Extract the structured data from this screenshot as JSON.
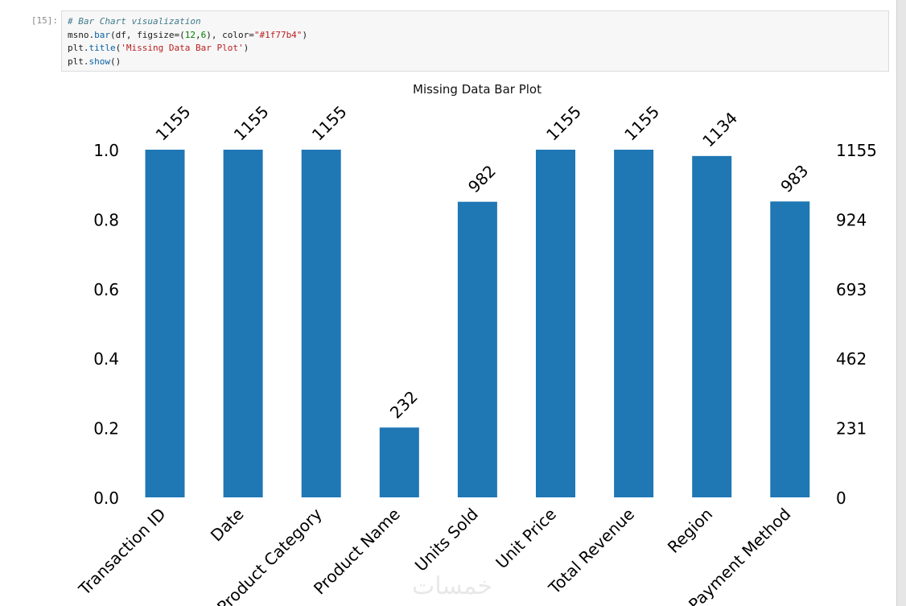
{
  "cell": {
    "prompt": "[15]:",
    "code_lines": [
      [
        {
          "t": "# Bar Chart visualization",
          "c": "cm"
        }
      ],
      [
        {
          "t": "msno.",
          "c": ""
        },
        {
          "t": "bar",
          "c": "fn"
        },
        {
          "t": "(df, figsize=(",
          "c": ""
        },
        {
          "t": "12",
          "c": "nu"
        },
        {
          "t": ",",
          "c": ""
        },
        {
          "t": "6",
          "c": "nu"
        },
        {
          "t": "), color=",
          "c": ""
        },
        {
          "t": "\"#1f77b4\"",
          "c": "st"
        },
        {
          "t": ")",
          "c": ""
        }
      ],
      [
        {
          "t": "plt.",
          "c": ""
        },
        {
          "t": "title",
          "c": "fn"
        },
        {
          "t": "(",
          "c": ""
        },
        {
          "t": "'Missing Data Bar Plot'",
          "c": "st"
        },
        {
          "t": ")",
          "c": ""
        }
      ],
      [
        {
          "t": "plt.",
          "c": ""
        },
        {
          "t": "show",
          "c": "fn"
        },
        {
          "t": "()",
          "c": ""
        }
      ]
    ]
  },
  "chart_data": {
    "type": "bar",
    "title": "Missing Data Bar Plot",
    "categories": [
      "Transaction ID",
      "Date",
      "Product Category",
      "Product Name",
      "Units Sold",
      "Unit Price",
      "Total Revenue",
      "Region",
      "Payment Method"
    ],
    "values": [
      1155,
      1155,
      1155,
      232,
      982,
      1155,
      1155,
      1134,
      983
    ],
    "total": 1155,
    "ylim": [
      0,
      1.0
    ],
    "left_ticks": [
      "0.0",
      "0.2",
      "0.4",
      "0.6",
      "0.8",
      "1.0"
    ],
    "right_ticks": [
      "0",
      "231",
      "462",
      "693",
      "924",
      "1155"
    ],
    "bar_color": "#1f77b4",
    "grid": false
  },
  "watermark": "خمسات"
}
